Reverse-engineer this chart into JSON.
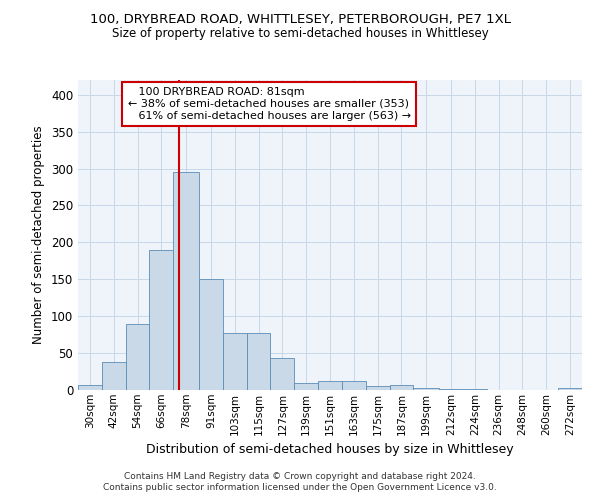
{
  "title": "100, DRYBREAD ROAD, WHITTLESEY, PETERBOROUGH, PE7 1XL",
  "subtitle": "Size of property relative to semi-detached houses in Whittlesey",
  "xlabel": "Distribution of semi-detached houses by size in Whittlesey",
  "ylabel": "Number of semi-detached properties",
  "property_label": "100 DRYBREAD ROAD: 81sqm",
  "pct_smaller": 38,
  "count_smaller": 353,
  "pct_larger": 61,
  "count_larger": 563,
  "bin_labels": [
    "30sqm",
    "42sqm",
    "54sqm",
    "66sqm",
    "78sqm",
    "91sqm",
    "103sqm",
    "115sqm",
    "127sqm",
    "139sqm",
    "151sqm",
    "163sqm",
    "175sqm",
    "187sqm",
    "199sqm",
    "212sqm",
    "224sqm",
    "236sqm",
    "248sqm",
    "260sqm",
    "272sqm"
  ],
  "bin_edges": [
    30,
    42,
    54,
    66,
    78,
    91,
    103,
    115,
    127,
    139,
    151,
    163,
    175,
    187,
    199,
    212,
    224,
    236,
    248,
    260,
    272,
    284
  ],
  "bar_heights": [
    7,
    38,
    90,
    190,
    295,
    150,
    77,
    77,
    43,
    10,
    12,
    12,
    5,
    7,
    3,
    2,
    1,
    0,
    0,
    0,
    3
  ],
  "bar_color": "#c9d9e8",
  "bar_edge_color": "#5b8db8",
  "vline_x": 81,
  "vline_color": "#cc0000",
  "annotation_box_color": "#cc0000",
  "grid_color": "#c8d8e8",
  "background_color": "#eef4fa",
  "ylim": [
    0,
    420
  ],
  "yticks": [
    0,
    50,
    100,
    150,
    200,
    250,
    300,
    350,
    400
  ],
  "footer_line1": "Contains HM Land Registry data © Crown copyright and database right 2024.",
  "footer_line2": "Contains public sector information licensed under the Open Government Licence v3.0."
}
